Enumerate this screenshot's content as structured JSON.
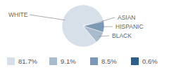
{
  "chart_data": {
    "type": "pie",
    "categories": [
      "WHITE",
      "BLACK",
      "HISPANIC",
      "ASIAN"
    ],
    "values": [
      81.7,
      9.1,
      8.5,
      0.6
    ],
    "value_labels": [
      "81.7%",
      "9.1%",
      "8.5%",
      "0.6%"
    ],
    "colors": [
      "#d7e0e9",
      "#a9bbcd",
      "#7d98b4",
      "#2e5e88"
    ],
    "data_labels": true
  }
}
